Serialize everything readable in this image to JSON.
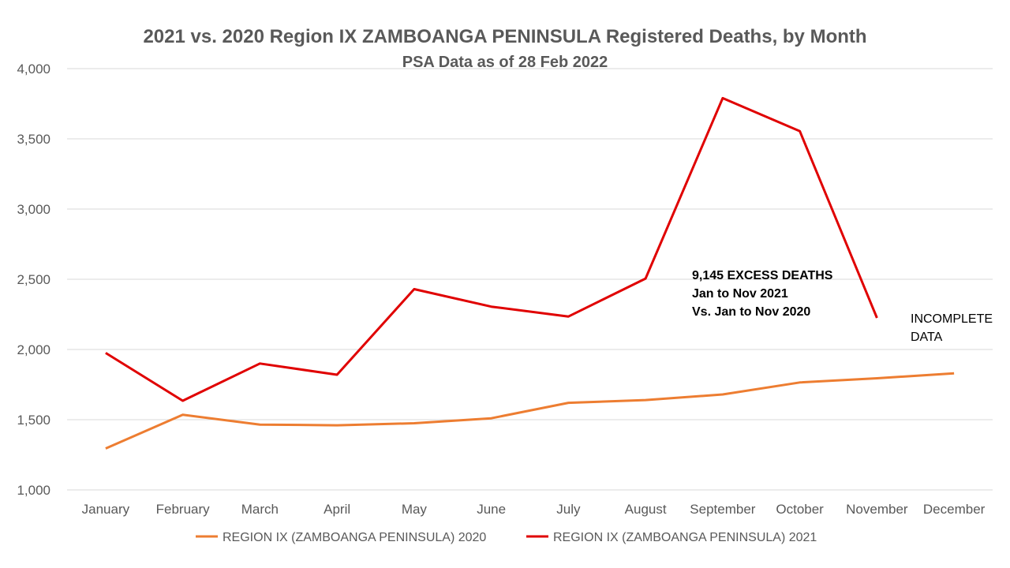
{
  "chart_data": {
    "type": "line",
    "title": "2021 vs. 2020 Region IX ZAMBOANGA PENINSULA Registered Deaths, by Month",
    "subtitle": "PSA Data as of 28 Feb 2022",
    "xlabel": "",
    "ylabel": "",
    "ylim": [
      1000,
      4000
    ],
    "yticks": [
      "1,000",
      "1,500",
      "2,000",
      "2,500",
      "3,000",
      "3,500",
      "4,000"
    ],
    "ytick_values": [
      1000,
      1500,
      2000,
      2500,
      3000,
      3500,
      4000
    ],
    "grid": true,
    "legend_position": "bottom",
    "categories": [
      "January",
      "February",
      "March",
      "April",
      "May",
      "June",
      "July",
      "August",
      "September",
      "October",
      "November",
      "December"
    ],
    "series": [
      {
        "name": "REGION IX (ZAMBOANGA PENINSULA) 2020",
        "color": "#ed7d31",
        "values": [
          1295,
          1535,
          1465,
          1460,
          1475,
          1510,
          1620,
          1640,
          1680,
          1765,
          1795,
          1830
        ]
      },
      {
        "name": "REGION IX (ZAMBOANGA PENINSULA) 2021",
        "color": "#e00000",
        "values": [
          1975,
          1635,
          1900,
          1820,
          2430,
          2305,
          2235,
          2505,
          3790,
          3555,
          2225,
          null
        ]
      }
    ],
    "annotations": {
      "excess_line1": "9,145 EXCESS DEATHS",
      "excess_line2": "Jan to Nov 2021",
      "excess_line3": "Vs. Jan to Nov 2020",
      "incomplete_line1": "INCOMPLETE",
      "incomplete_line2": "DATA"
    }
  }
}
